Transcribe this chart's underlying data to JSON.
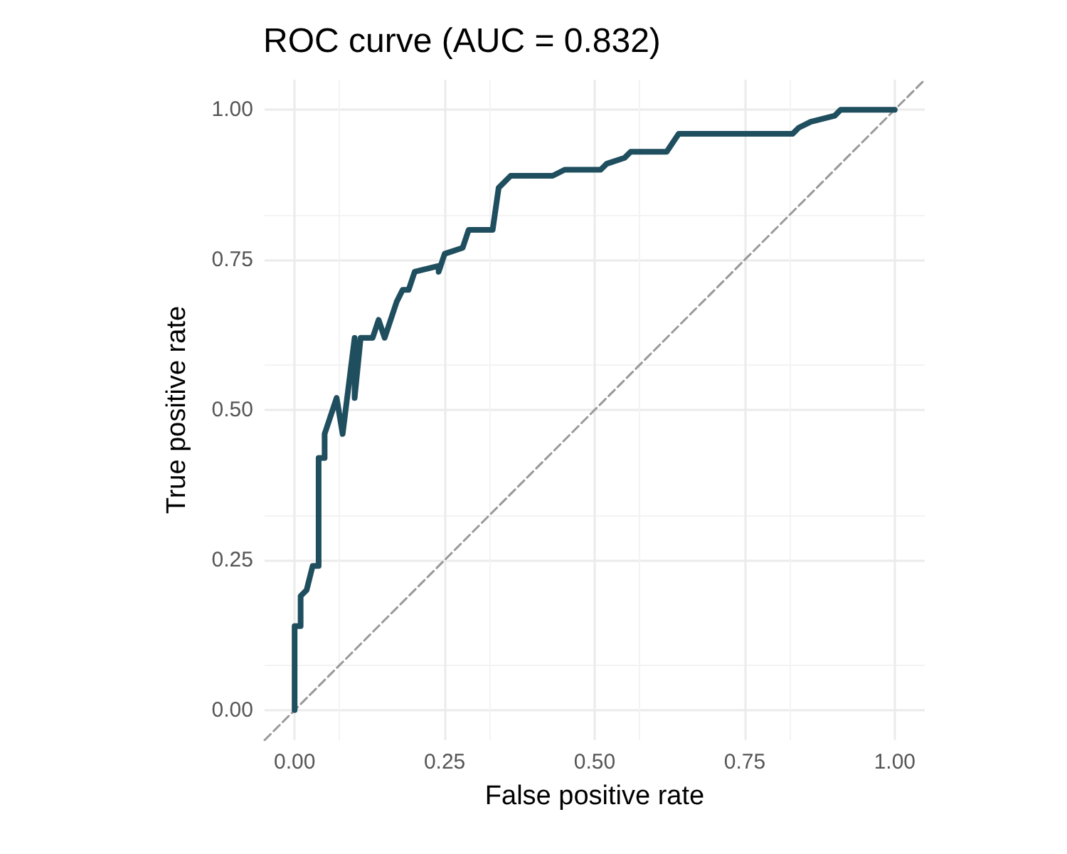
{
  "chart_data": {
    "type": "line",
    "title": "ROC curve (AUC = 0.832)",
    "xlabel": "False positive rate",
    "ylabel": "True positive rate",
    "xlim": [
      -0.05,
      1.05
    ],
    "ylim": [
      -0.05,
      1.05
    ],
    "xticks": [
      {
        "value": 0,
        "label": "0.00"
      },
      {
        "value": 0.25,
        "label": "0.25"
      },
      {
        "value": 0.5,
        "label": "0.50"
      },
      {
        "value": 0.75,
        "label": "0.75"
      },
      {
        "value": 1,
        "label": "1.00"
      }
    ],
    "yticks": [
      {
        "value": 0,
        "label": "0.00"
      },
      {
        "value": 0.25,
        "label": "0.25"
      },
      {
        "value": 0.5,
        "label": "0.50"
      },
      {
        "value": 0.75,
        "label": "0.75"
      },
      {
        "value": 1,
        "label": "1.00"
      }
    ],
    "grid": true,
    "marker": "none",
    "series": [
      {
        "color": "#1f4e5f",
        "line_style": "solid",
        "x": [
          0,
          0,
          0.01,
          0.01,
          0.02,
          0.03,
          0.04,
          0.04,
          0.05,
          0.05,
          0.07,
          0.08,
          0.1,
          0.1,
          0.11,
          0.13,
          0.14,
          0.15,
          0.17,
          0.18,
          0.19,
          0.2,
          0.24,
          0.24,
          0.25,
          0.28,
          0.29,
          0.33,
          0.34,
          0.36,
          0.43,
          0.45,
          0.51,
          0.52,
          0.55,
          0.56,
          0.62,
          0.64,
          0.83,
          0.84,
          0.86,
          0.9,
          0.91,
          1
        ],
        "values": [
          0,
          0.14,
          0.14,
          0.19,
          0.2,
          0.24,
          0.24,
          0.42,
          0.42,
          0.46,
          0.52,
          0.46,
          0.62,
          0.52,
          0.62,
          0.62,
          0.65,
          0.62,
          0.68,
          0.7,
          0.7,
          0.73,
          0.74,
          0.73,
          0.76,
          0.77,
          0.8,
          0.8,
          0.87,
          0.89,
          0.89,
          0.9,
          0.9,
          0.91,
          0.92,
          0.93,
          0.93,
          0.96,
          0.96,
          0.97,
          0.98,
          0.99,
          1,
          1
        ]
      },
      {
        "color": "#999999",
        "line_style": "dashed",
        "x": [
          -0.05,
          1.05
        ],
        "values": [
          -0.05,
          1.05
        ]
      }
    ]
  }
}
